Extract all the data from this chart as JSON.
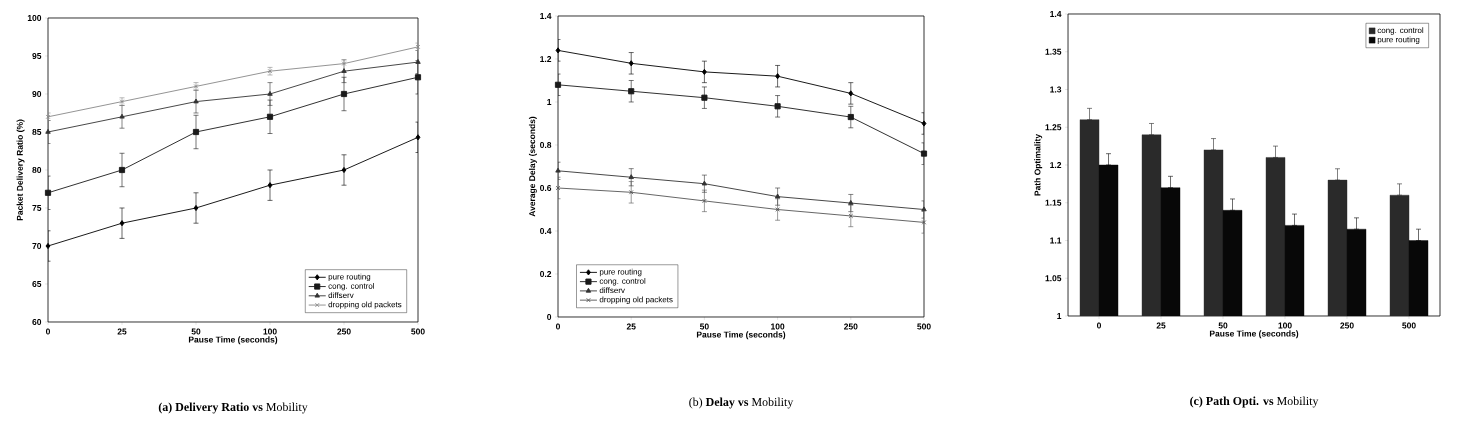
{
  "chart_data": [
    {
      "type": "line",
      "title": "**(a) Delivery Ratio vs** Mobility",
      "xlabel": "Pause Time (seconds)",
      "ylabel": "Packet Delivery Ratio (%)",
      "categories": [
        "0",
        "25",
        "50",
        "100",
        "250",
        "500"
      ],
      "ylim": [
        60,
        100
      ],
      "yticks": [
        60,
        65,
        70,
        75,
        80,
        85,
        90,
        95,
        100
      ],
      "legend": "bottom right",
      "series": [
        {
          "name": "pure routing",
          "color": "#000000",
          "marker": "diamond",
          "values": [
            70,
            73,
            75,
            78,
            80,
            84.3
          ],
          "errors": [
            2,
            2,
            2,
            2,
            2,
            2
          ]
        },
        {
          "name": "cong. control",
          "color": "#1a1a1a",
          "marker": "square",
          "values": [
            77,
            80,
            85,
            87,
            90,
            92.2
          ],
          "errors": [
            2.2,
            2.2,
            2.2,
            2.2,
            2.2,
            2.2
          ]
        },
        {
          "name": "diffserv",
          "color": "#333333",
          "marker": "triangle",
          "values": [
            85,
            87,
            89,
            90,
            93,
            94.2
          ],
          "errors": [
            1.5,
            1.5,
            1.5,
            1.5,
            1.5,
            1.5
          ]
        },
        {
          "name": "dropping old packets",
          "color": "#888888",
          "marker": "cross",
          "values": [
            87,
            89,
            91,
            93,
            94,
            96.2
          ],
          "errors": [
            0.5,
            0.5,
            0.5,
            0.5,
            null,
            0.5
          ]
        }
      ]
    },
    {
      "type": "line",
      "title": "(b) **Delay vs** Mobility",
      "xlabel": "Pause Time (seconds)",
      "ylabel": "Average Delay (seconds)",
      "categories": [
        "0",
        "25",
        "50",
        "100",
        "250",
        "500"
      ],
      "ylim": [
        0,
        1.4
      ],
      "yticks": [
        0,
        0.2,
        0.4,
        0.6,
        0.8,
        1,
        1.2,
        1.4
      ],
      "legend": "bottom left",
      "series": [
        {
          "name": "pure routing",
          "color": "#000000",
          "marker": "diamond",
          "values": [
            1.24,
            1.18,
            1.14,
            1.12,
            1.04,
            0.9
          ],
          "errors": [
            0.05,
            0.05,
            0.05,
            0.05,
            0.05,
            0.05
          ]
        },
        {
          "name": "cong. control",
          "color": "#1a1a1a",
          "marker": "square",
          "values": [
            1.08,
            1.05,
            1.02,
            0.98,
            0.93,
            0.76
          ],
          "errors": [
            0.05,
            0.05,
            0.05,
            0.05,
            0.05,
            0.05
          ]
        },
        {
          "name": "diffserv",
          "color": "#333333",
          "marker": "triangle",
          "values": [
            0.68,
            0.65,
            0.62,
            0.56,
            0.53,
            0.5
          ],
          "errors": [
            0.04,
            0.04,
            0.04,
            0.04,
            0.04,
            0.04
          ]
        },
        {
          "name": "dropping old packets",
          "color": "#555555",
          "marker": "cross",
          "values": [
            0.6,
            0.58,
            0.54,
            0.5,
            0.47,
            0.44
          ],
          "errors": [
            0.05,
            0.05,
            0.05,
            0.05,
            0.05,
            0.05
          ]
        }
      ]
    },
    {
      "type": "bar",
      "title": "**(c) Path Opti. vs** Mobility",
      "xlabel": "Pause Time (seconds)",
      "ylabel": "Path Optimality",
      "categories": [
        "0",
        "25",
        "50",
        "100",
        "250",
        "500"
      ],
      "ylim": [
        1,
        1.4
      ],
      "yticks": [
        1,
        1.05,
        1.1,
        1.15,
        1.2,
        1.25,
        1.3,
        1.35,
        1.4
      ],
      "legend": "top right",
      "series": [
        {
          "name": "cong. control",
          "color": "#2a2a2a",
          "values": [
            1.26,
            1.24,
            1.22,
            1.21,
            1.18,
            1.16
          ],
          "errors": [
            [
              1.26,
              1.275
            ],
            [
              1.24,
              1.255
            ],
            [
              1.22,
              1.235
            ],
            [
              1.21,
              1.225
            ],
            [
              1.18,
              1.195
            ],
            [
              1.16,
              1.175
            ]
          ]
        },
        {
          "name": "pure routing",
          "color": "#080808",
          "values": [
            1.2,
            1.17,
            1.14,
            1.12,
            1.115,
            1.1
          ],
          "errors": [
            [
              1.2,
              1.215
            ],
            [
              1.17,
              1.185
            ],
            [
              1.14,
              1.155
            ],
            [
              1.12,
              1.135
            ],
            [
              1.115,
              1.13
            ],
            [
              1.1,
              1.115
            ]
          ]
        }
      ]
    }
  ]
}
